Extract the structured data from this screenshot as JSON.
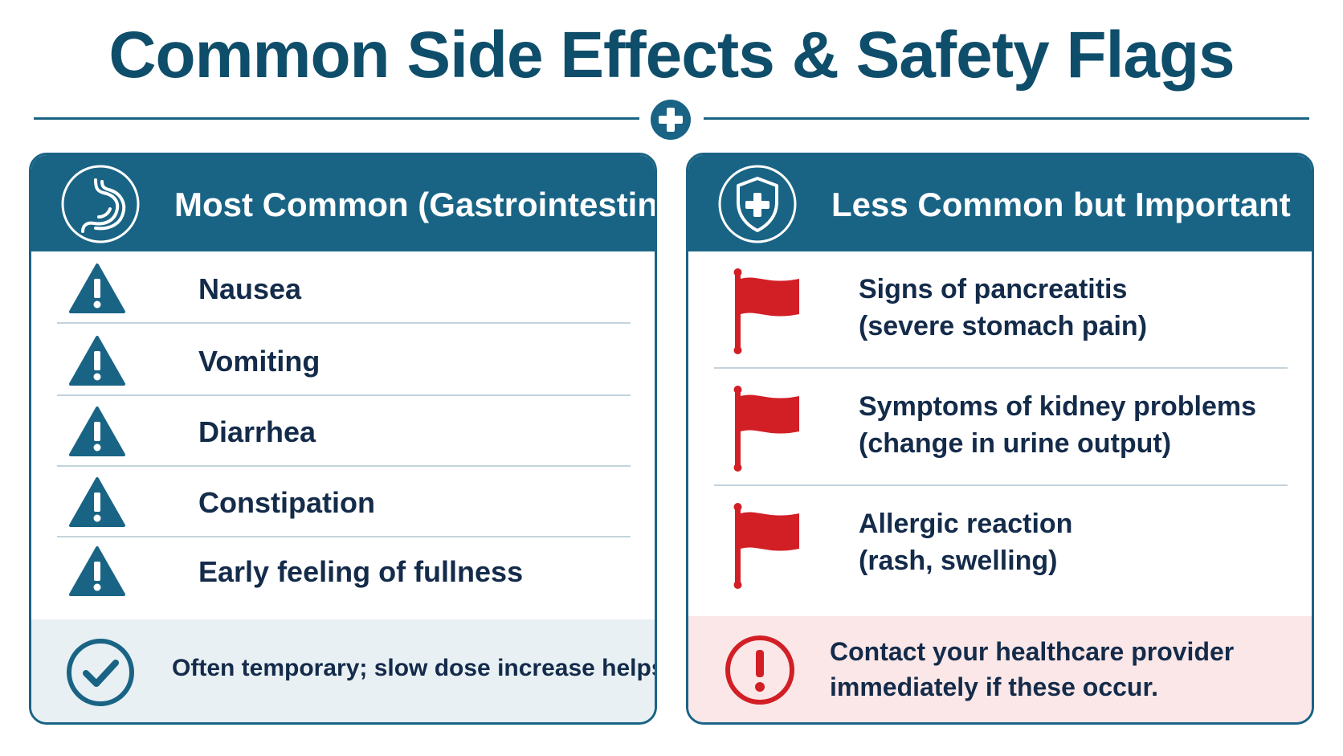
{
  "title": "Common Side Effects & Safety Flags",
  "colors": {
    "header": "#196485",
    "title": "#0f4e6b",
    "flag": "#d21f26",
    "left_footer_bg": "#e8f0f4",
    "right_footer_bg": "#fbe7e8"
  },
  "left_panel": {
    "heading": "Most Common (Gastrointestinal)",
    "icon": "stomach-icon",
    "items": [
      {
        "label": "Nausea",
        "icon": "warning-icon"
      },
      {
        "label": "Vomiting",
        "icon": "warning-icon"
      },
      {
        "label": "Diarrhea",
        "icon": "warning-icon"
      },
      {
        "label": "Constipation",
        "icon": "warning-icon"
      },
      {
        "label": "Early feeling of fullness",
        "icon": "warning-icon"
      }
    ],
    "footer": {
      "text": "Often temporary; slow dose increase helps.",
      "icon": "check-circle-icon"
    }
  },
  "right_panel": {
    "heading": "Less Common but Important",
    "icon": "shield-plus-icon",
    "items": [
      {
        "line1": "Signs of pancreatitis",
        "line2": "(severe stomach pain)",
        "icon": "red-flag-icon"
      },
      {
        "line1": "Symptoms of kidney problems",
        "line2": "(change in urine output)",
        "icon": "red-flag-icon"
      },
      {
        "line1": "Allergic reaction",
        "line2": "(rash, swelling)",
        "icon": "red-flag-icon"
      }
    ],
    "footer": {
      "line1": "Contact your healthcare provider",
      "line2": "immediately if these occur.",
      "icon": "exclamation-circle-icon"
    }
  }
}
